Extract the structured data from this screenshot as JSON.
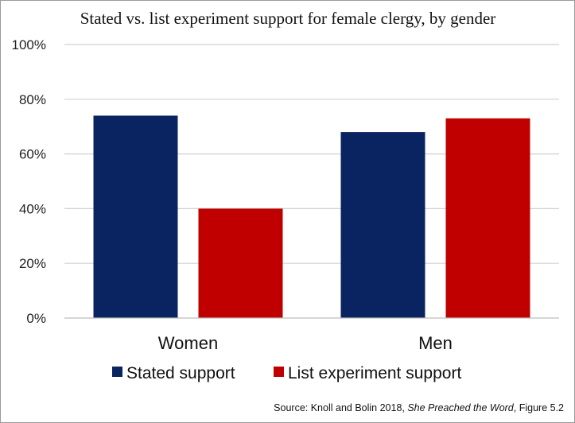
{
  "chart_data": {
    "type": "bar",
    "title": "Stated vs. list experiment support for female clergy, by gender",
    "categories": [
      "Women",
      "Men"
    ],
    "series": [
      {
        "name": "Stated support",
        "color": "#0a2461",
        "values": [
          74,
          68
        ]
      },
      {
        "name": "List experiment support",
        "color": "#c00000",
        "values": [
          40,
          73
        ]
      }
    ],
    "ylim": [
      0,
      100
    ],
    "yticks": [
      0,
      20,
      40,
      60,
      80,
      100
    ],
    "ytick_labels": [
      "0%",
      "20%",
      "40%",
      "60%",
      "80%",
      "100%"
    ],
    "xlabel": "",
    "ylabel": "",
    "grid": true,
    "legend_position": "bottom"
  },
  "source": {
    "prefix": "Source: Knoll and Bolin 2018, ",
    "italic": "She Preached the Word",
    "suffix": ", Figure 5.2"
  }
}
